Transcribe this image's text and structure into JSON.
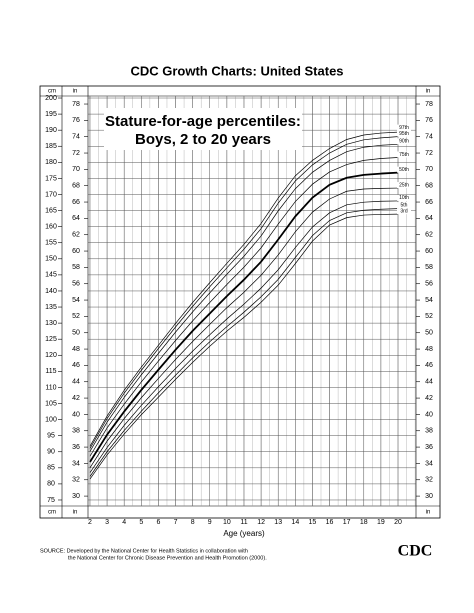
{
  "chart_data": {
    "type": "line",
    "title": "CDC Growth Charts: United States",
    "subtitle": [
      "Stature-for-age percentiles:",
      "Boys, 2 to 20 years"
    ],
    "x_label": "Age (years)",
    "y_label": "cm",
    "y2_label": "in",
    "source": [
      "SOURCE: Developed by the National Center for Health Statistics in collaboration with",
      "the National Center for Chronic Disease Prevention and Health Promotion (2000)."
    ],
    "logo": "CDC",
    "x": [
      2,
      3,
      4,
      5,
      6,
      7,
      8,
      9,
      10,
      11,
      12,
      13,
      14,
      15,
      16,
      17,
      18,
      19,
      20
    ],
    "xlim": [
      1.5,
      20.8
    ],
    "xticks": [
      2,
      3,
      4,
      5,
      6,
      7,
      8,
      9,
      10,
      11,
      12,
      13,
      14,
      15,
      16,
      17,
      18,
      19,
      20
    ],
    "ylim": [
      74,
      201
    ],
    "yticks": [
      75,
      80,
      85,
      90,
      95,
      100,
      105,
      110,
      115,
      120,
      125,
      130,
      135,
      140,
      145,
      150,
      155,
      160,
      165,
      170,
      175,
      180,
      185,
      190,
      195,
      200
    ],
    "y2lim": [
      29.13,
      79.13
    ],
    "y2ticks": [
      30,
      32,
      34,
      36,
      38,
      40,
      42,
      44,
      46,
      48,
      50,
      52,
      54,
      56,
      58,
      60,
      62,
      64,
      66,
      68,
      70,
      72,
      74,
      76,
      78
    ],
    "grid": true,
    "series": [
      {
        "name": "3rd",
        "color": "#000000",
        "values": [
          81.5,
          89.0,
          95.5,
          101.5,
          107.0,
          112.5,
          117.8,
          122.8,
          127.5,
          131.8,
          136.5,
          141.8,
          148.5,
          155.5,
          160.5,
          162.8,
          163.6,
          163.8,
          163.9
        ]
      },
      {
        "name": "5th",
        "color": "#000000",
        "values": [
          82.3,
          90.0,
          96.6,
          102.6,
          108.3,
          113.8,
          119.2,
          124.2,
          128.9,
          133.4,
          138.2,
          143.6,
          150.4,
          157.2,
          161.9,
          164.3,
          165.1,
          165.4,
          165.6
        ]
      },
      {
        "name": "10th",
        "color": "#000000",
        "values": [
          83.5,
          91.3,
          98.2,
          104.4,
          110.2,
          115.9,
          121.3,
          126.4,
          131.3,
          135.9,
          140.9,
          146.6,
          153.5,
          159.9,
          164.3,
          166.8,
          167.6,
          167.9,
          168.0
        ]
      },
      {
        "name": "25th",
        "color": "#000000",
        "values": [
          85.0,
          93.3,
          100.3,
          106.8,
          112.8,
          118.7,
          124.3,
          129.6,
          134.8,
          139.6,
          144.9,
          151.2,
          158.4,
          164.5,
          168.6,
          171.0,
          171.7,
          171.9,
          172.0
        ]
      },
      {
        "name": "50th",
        "color": "#000000",
        "values": [
          86.8,
          95.3,
          102.5,
          109.2,
          115.5,
          121.7,
          127.6,
          133.0,
          138.4,
          143.5,
          149.1,
          156.0,
          163.2,
          169.0,
          173.0,
          175.2,
          176.1,
          176.5,
          176.8
        ]
      },
      {
        "name": "75th",
        "color": "#000000",
        "values": [
          88.6,
          97.4,
          104.8,
          111.7,
          118.2,
          124.6,
          130.7,
          136.4,
          142.0,
          147.4,
          153.4,
          160.8,
          167.8,
          173.2,
          177.0,
          179.3,
          180.6,
          181.2,
          181.5
        ]
      },
      {
        "name": "90th",
        "color": "#000000",
        "values": [
          90.1,
          99.2,
          106.9,
          113.9,
          120.6,
          127.2,
          133.5,
          139.4,
          145.2,
          150.8,
          157.1,
          164.9,
          171.8,
          176.9,
          180.6,
          183.3,
          184.7,
          185.3,
          185.6
        ]
      },
      {
        "name": "95th",
        "color": "#000000",
        "values": [
          91.0,
          100.3,
          108.2,
          115.3,
          122.1,
          128.8,
          135.2,
          141.3,
          147.2,
          153.0,
          159.4,
          167.3,
          174.2,
          179.2,
          182.9,
          185.6,
          187.0,
          187.6,
          188.0
        ]
      },
      {
        "name": "97th",
        "color": "#000000",
        "values": [
          91.7,
          101.1,
          109.1,
          116.3,
          123.1,
          129.9,
          136.4,
          142.6,
          148.6,
          154.5,
          161.0,
          168.9,
          175.8,
          180.6,
          184.3,
          187.1,
          188.5,
          189.1,
          189.4
        ]
      }
    ]
  }
}
